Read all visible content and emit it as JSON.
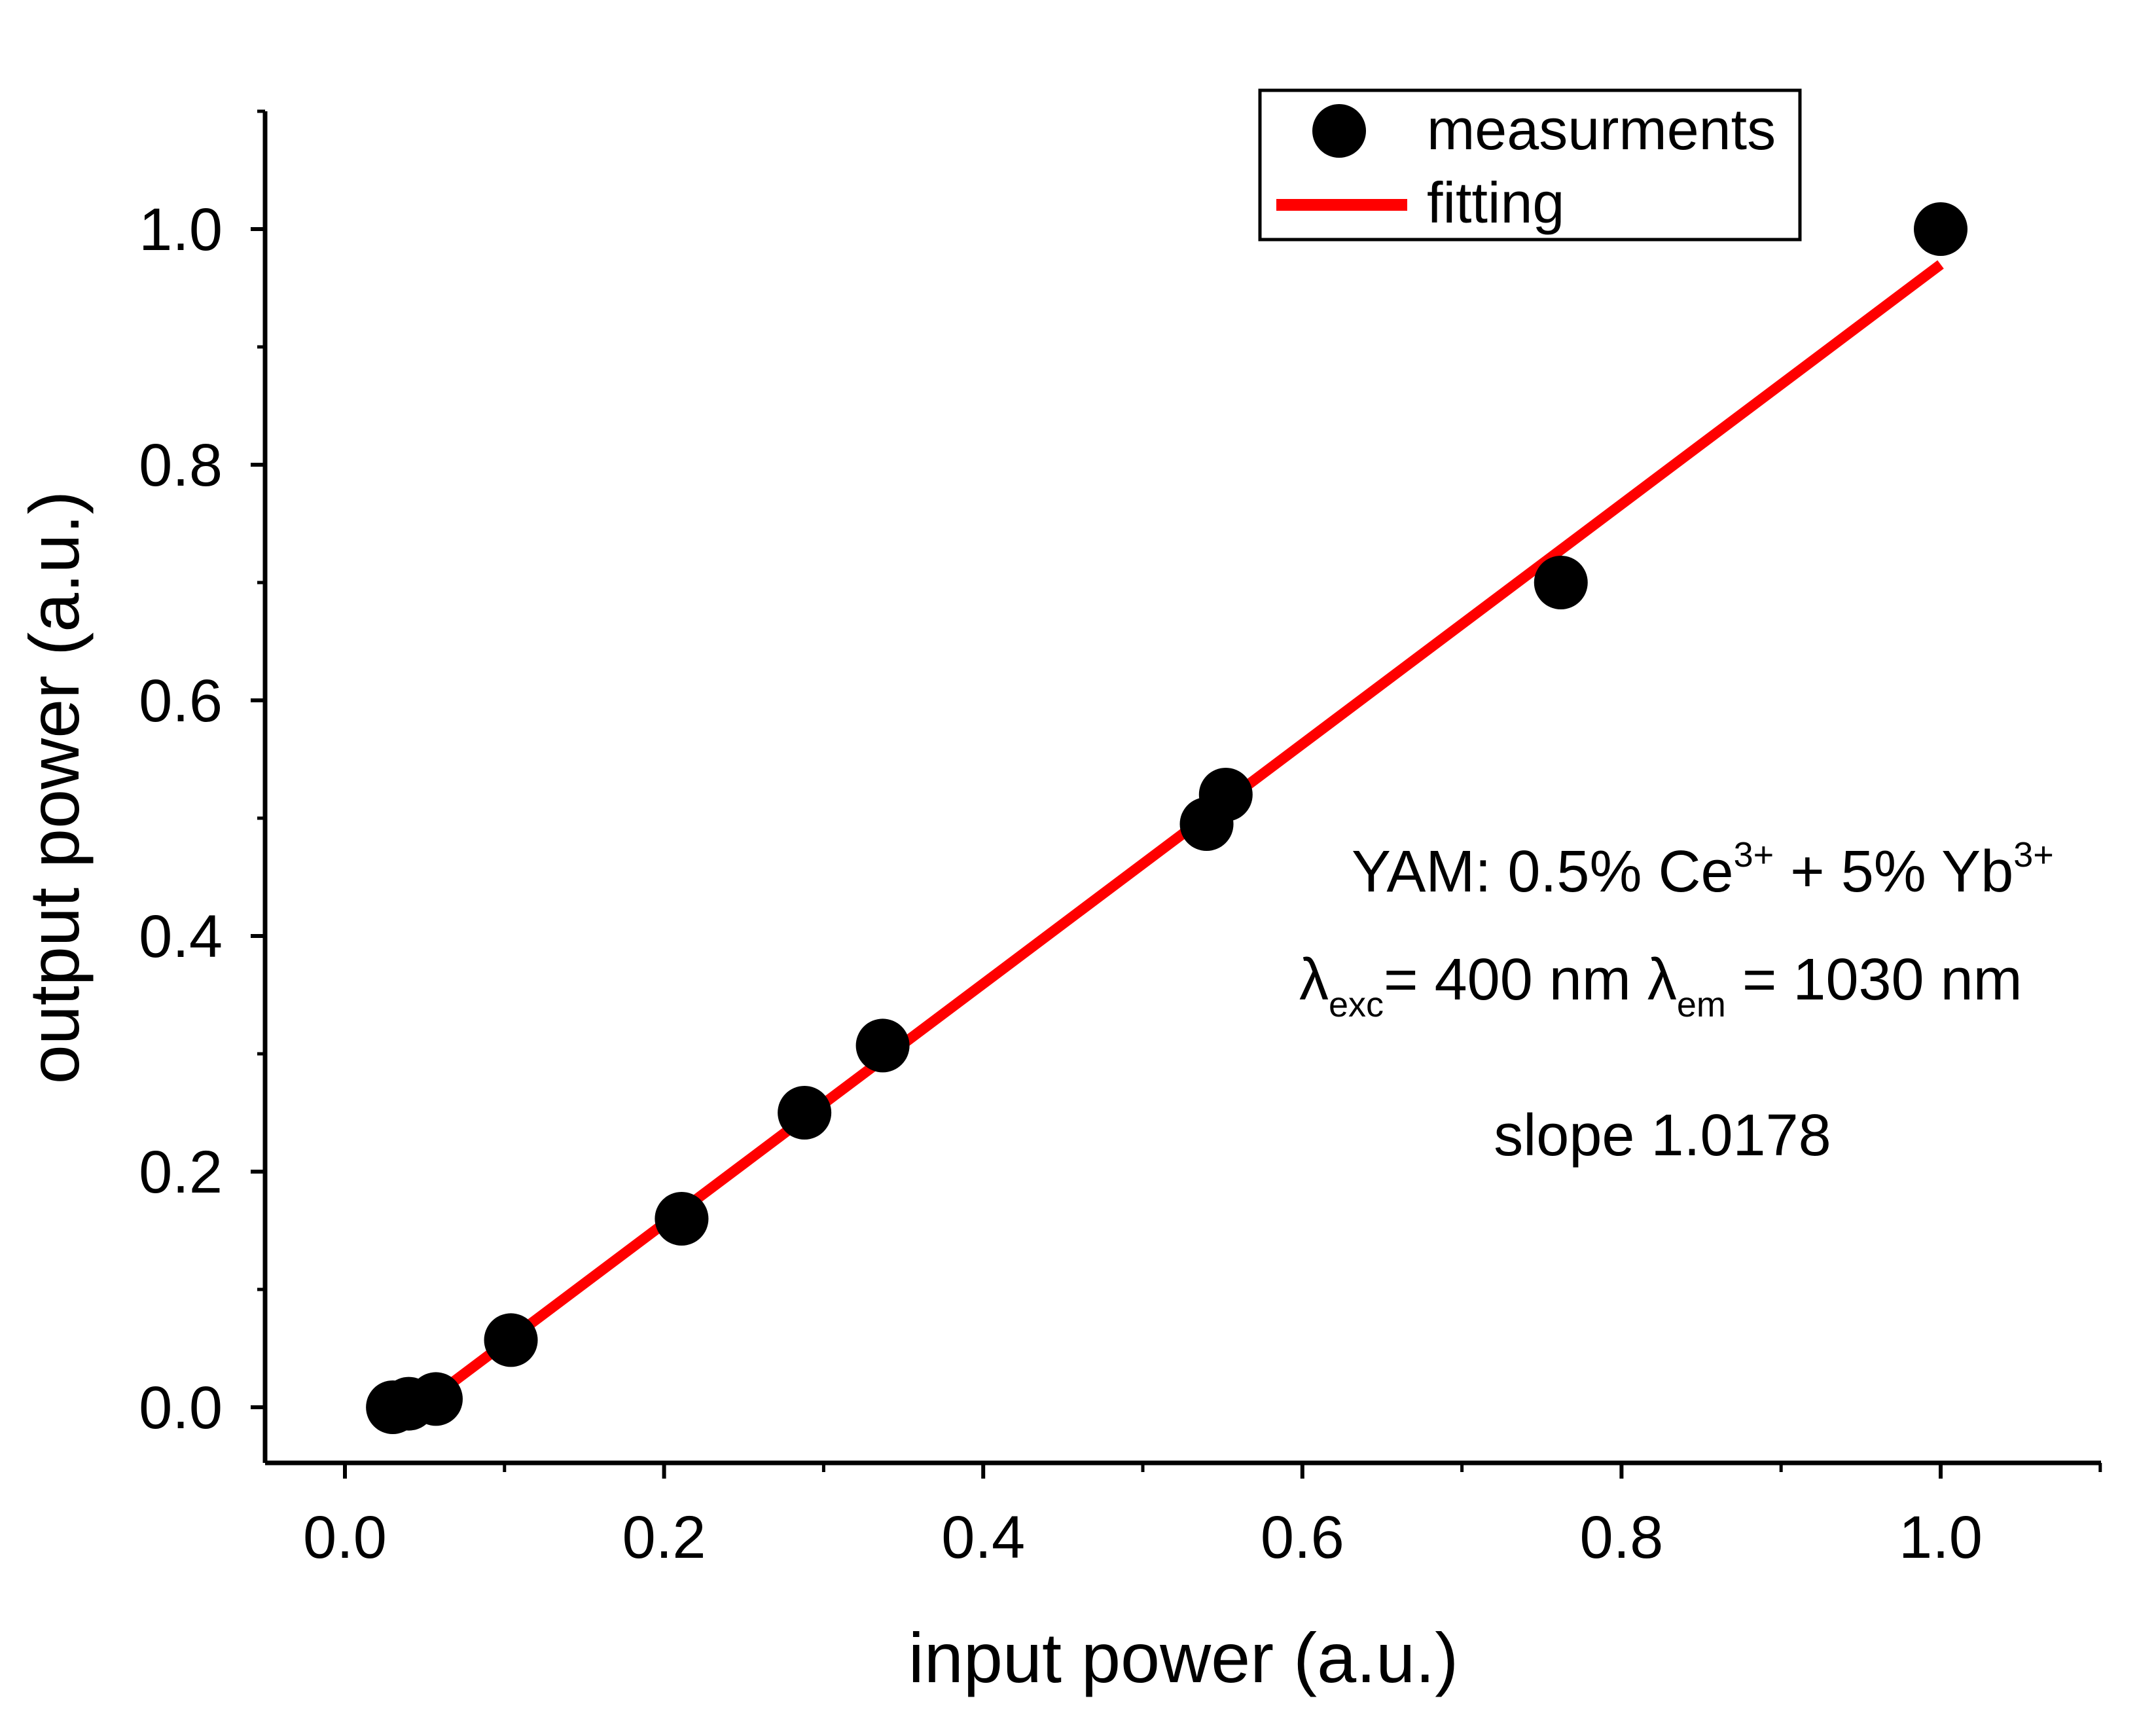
{
  "chart_data": {
    "type": "scatter",
    "xlabel": "input power (a.u.)",
    "ylabel": "output power (a.u.)",
    "xlim": [
      -0.05,
      1.1
    ],
    "ylim": [
      -0.05,
      1.1
    ],
    "x_ticks": [
      "0.0",
      "0.2",
      "0.4",
      "0.6",
      "0.8",
      "1.0"
    ],
    "y_ticks": [
      "0.0",
      "0.2",
      "0.4",
      "0.6",
      "0.8",
      "1.0"
    ],
    "grid": false,
    "legend_position": "top-right",
    "series": [
      {
        "name": "measurments",
        "kind": "scatter",
        "color": "#000000",
        "x": [
          0.03,
          0.04,
          0.057,
          0.104,
          0.211,
          0.288,
          0.337,
          0.54,
          0.552,
          0.762,
          1.0
        ],
        "y": [
          0.0,
          0.003,
          0.007,
          0.057,
          0.16,
          0.25,
          0.307,
          0.495,
          0.52,
          0.7,
          1.0
        ]
      },
      {
        "name": "fitting",
        "kind": "line",
        "color": "#ff0000",
        "x": [
          0.032,
          1.0
        ],
        "y": [
          -0.015,
          0.97
        ]
      }
    ],
    "annotations": {
      "composition_main": "YAM: 0.5% Ce",
      "composition_sup1": "3+",
      "composition_mid": " + 5% Yb",
      "composition_sup2": "3+",
      "lambda_symbol": "λ",
      "lambda_exc_sub": "exc",
      "lambda_exc_value": "= 400 nm ",
      "lambda_em_sub": "em",
      "lambda_em_value": " = 1030 nm",
      "slope": "slope 1.0178"
    }
  }
}
